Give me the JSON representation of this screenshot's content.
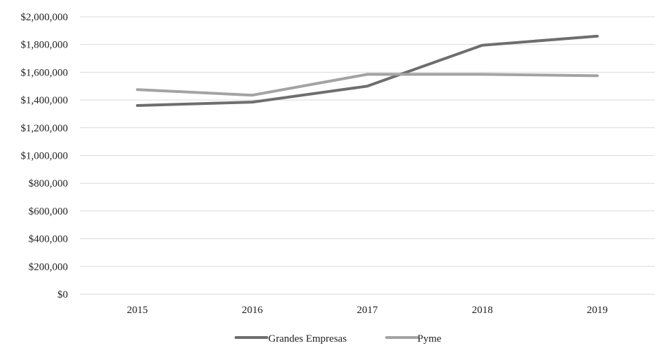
{
  "chart_data": {
    "type": "line",
    "categories": [
      "2015",
      "2016",
      "2017",
      "2018",
      "2019"
    ],
    "ylim": [
      0,
      2000000
    ],
    "yticks": [
      0,
      200000,
      400000,
      600000,
      800000,
      1000000,
      1200000,
      1400000,
      1600000,
      1800000,
      2000000
    ],
    "ytick_labels": [
      "$0",
      "$200,000",
      "$400,000",
      "$600,000",
      "$800,000",
      "$1,000,000",
      "$1,200,000",
      "$1,400,000",
      "$1,600,000",
      "$1,800,000",
      "$2,000,000"
    ],
    "grid": true,
    "legend_position": "bottom",
    "series": [
      {
        "name": "Grandes Empresas",
        "values": [
          1360000,
          1385000,
          1500000,
          1795000,
          1860000
        ],
        "color": "#6e6e6e"
      },
      {
        "name": "Pyme",
        "values": [
          1475000,
          1435000,
          1585000,
          1585000,
          1575000
        ],
        "color": "#a3a3a3"
      }
    ],
    "gridline_color": "#d9d9d9"
  }
}
